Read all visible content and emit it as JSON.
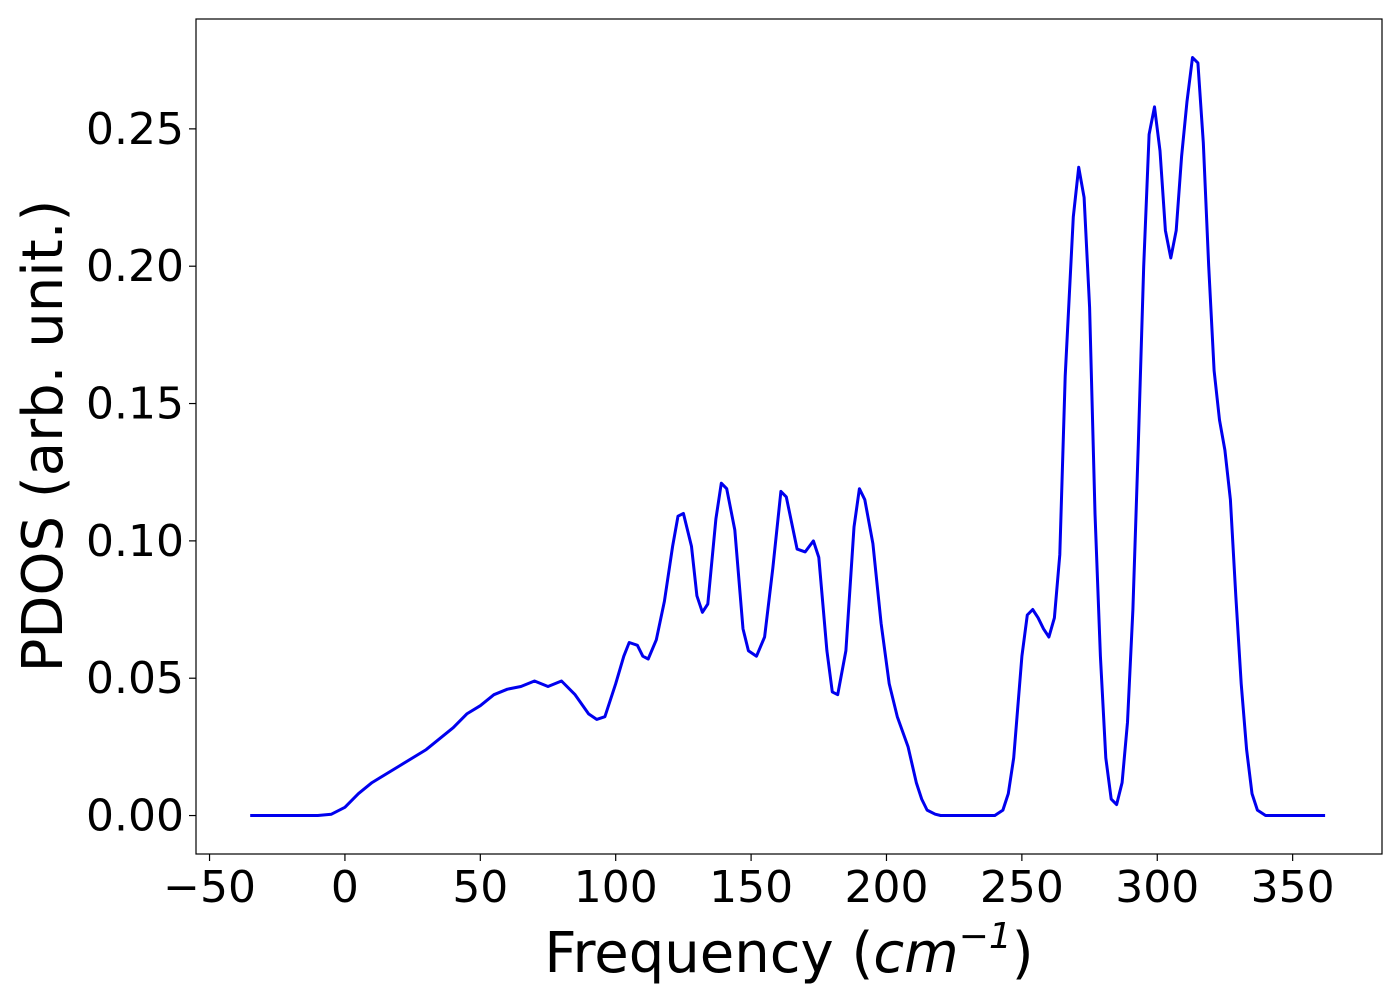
{
  "chart_data": {
    "type": "line",
    "title": "",
    "xlabel": "Frequency (",
    "xlabel_var": "cm",
    "xlabel_exp": "−1",
    "xlabel_close": ")",
    "ylabel": "PDOS (arb. unit.)",
    "xlim": [
      -55,
      383
    ],
    "ylim": [
      -0.014,
      0.29
    ],
    "xticks": [
      -50,
      0,
      50,
      100,
      150,
      200,
      250,
      300,
      350
    ],
    "xtick_labels": [
      "−50",
      "0",
      "50",
      "100",
      "150",
      "200",
      "250",
      "300",
      "350"
    ],
    "yticks": [
      0.0,
      0.05,
      0.1,
      0.15,
      0.2,
      0.25
    ],
    "ytick_labels": [
      "0.00",
      "0.05",
      "0.10",
      "0.15",
      "0.20",
      "0.25"
    ],
    "grid": false,
    "legend": "none",
    "series": [
      {
        "color": "#0000ee",
        "x": [
          -35,
          -10,
          -5,
          0,
          5,
          10,
          20,
          30,
          40,
          45,
          50,
          55,
          60,
          65,
          70,
          75,
          80,
          85,
          90,
          93,
          96,
          100,
          103,
          105,
          108,
          110,
          112,
          115,
          118,
          121,
          123,
          125,
          128,
          130,
          132,
          134,
          137,
          139,
          141,
          144,
          147,
          149,
          152,
          155,
          158,
          161,
          163,
          167,
          170,
          173,
          175,
          178,
          180,
          182,
          185,
          188,
          190,
          192,
          195,
          198,
          201,
          204,
          208,
          211,
          213,
          215,
          218,
          220,
          225,
          240,
          243,
          245,
          247,
          250,
          252,
          254,
          256,
          258,
          260,
          262,
          264,
          266,
          269,
          271,
          273,
          275,
          277,
          279,
          281,
          283,
          285,
          287,
          289,
          291,
          293,
          295,
          297,
          299,
          301,
          303,
          305,
          307,
          309,
          311,
          313,
          315,
          317,
          319,
          321,
          323,
          325,
          327,
          329,
          331,
          333,
          335,
          337,
          340,
          362
        ],
        "y": [
          0.0,
          0.0,
          0.0005,
          0.003,
          0.008,
          0.012,
          0.018,
          0.024,
          0.032,
          0.037,
          0.04,
          0.044,
          0.046,
          0.047,
          0.049,
          0.047,
          0.049,
          0.044,
          0.037,
          0.035,
          0.036,
          0.048,
          0.058,
          0.063,
          0.062,
          0.058,
          0.057,
          0.064,
          0.078,
          0.098,
          0.109,
          0.11,
          0.098,
          0.08,
          0.074,
          0.077,
          0.108,
          0.121,
          0.119,
          0.104,
          0.068,
          0.06,
          0.058,
          0.065,
          0.09,
          0.118,
          0.116,
          0.097,
          0.096,
          0.1,
          0.094,
          0.06,
          0.045,
          0.044,
          0.06,
          0.105,
          0.119,
          0.115,
          0.099,
          0.07,
          0.048,
          0.036,
          0.025,
          0.012,
          0.006,
          0.002,
          0.0005,
          0.0,
          0.0,
          0.0,
          0.002,
          0.008,
          0.021,
          0.058,
          0.073,
          0.075,
          0.072,
          0.068,
          0.065,
          0.072,
          0.095,
          0.16,
          0.218,
          0.236,
          0.225,
          0.185,
          0.11,
          0.058,
          0.021,
          0.006,
          0.004,
          0.012,
          0.034,
          0.075,
          0.135,
          0.2,
          0.248,
          0.258,
          0.242,
          0.213,
          0.203,
          0.213,
          0.24,
          0.26,
          0.276,
          0.274,
          0.245,
          0.2,
          0.162,
          0.144,
          0.133,
          0.115,
          0.08,
          0.048,
          0.024,
          0.008,
          0.002,
          0.0,
          0.0
        ]
      }
    ]
  }
}
